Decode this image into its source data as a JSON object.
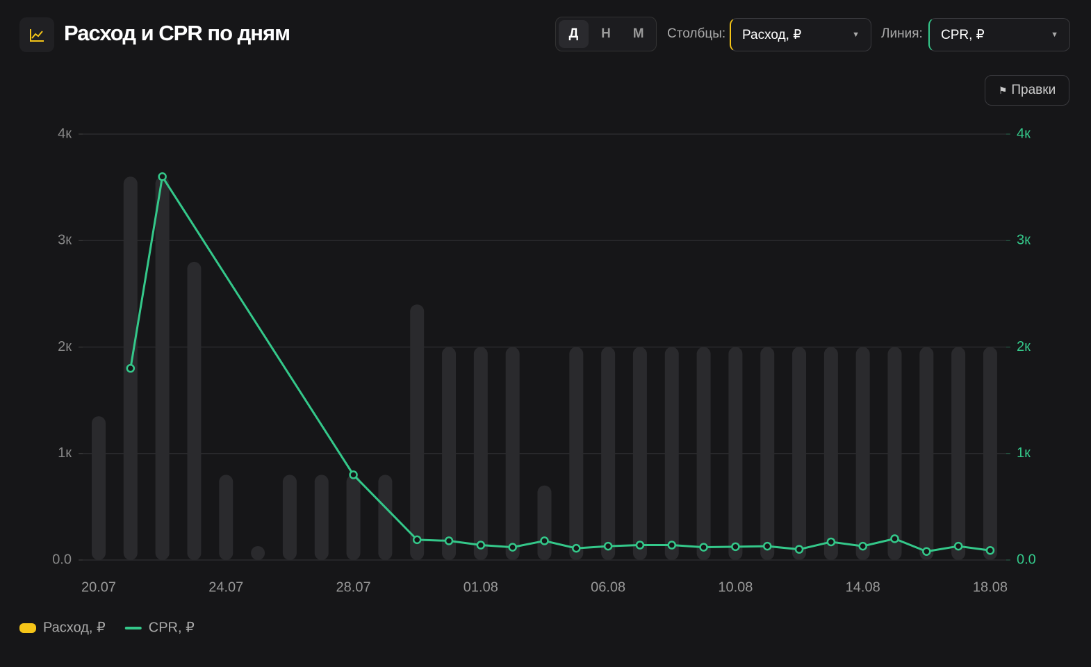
{
  "header": {
    "title": "Расход и CPR по дням",
    "periods": [
      "Д",
      "Н",
      "М"
    ],
    "bars_label": "Столбцы:",
    "bars_value": "Расход, ₽",
    "line_label": "Линия:",
    "line_value": "CPR, ₽",
    "edits_button": "Правки"
  },
  "chart_data": {
    "type": "bar_line",
    "categories": [
      "20.07",
      null,
      null,
      null,
      "24.07",
      null,
      null,
      null,
      "28.07",
      null,
      null,
      null,
      "01.08",
      null,
      null,
      null,
      "06.08",
      null,
      null,
      null,
      "10.08",
      null,
      null,
      null,
      "14.08",
      null,
      null,
      null,
      "18.08"
    ],
    "series": [
      {
        "name": "Расход, ₽",
        "color": "#f5c518",
        "bar_color": "#2a2a2d",
        "values": [
          1350,
          3600,
          3600,
          2800,
          800,
          100,
          800,
          800,
          800,
          800,
          2400,
          2000,
          2000,
          2000,
          700,
          2000,
          2000,
          2000,
          2000,
          2000,
          2000,
          2000,
          2000,
          2000,
          2000,
          2000,
          2000,
          2000,
          2000
        ]
      },
      {
        "name": "CPR, ₽",
        "color": "#34c88a",
        "axis": "y2",
        "span_gaps": true,
        "values": [
          null,
          1800,
          3600,
          null,
          null,
          null,
          null,
          null,
          800,
          null,
          190,
          180,
          140,
          120,
          180,
          110,
          130,
          140,
          140,
          120,
          125,
          130,
          100,
          170,
          130,
          200,
          80,
          130,
          90
        ]
      }
    ],
    "ylim": [
      0,
      4000
    ],
    "yticks": [
      {
        "value": 0,
        "label": "0.0"
      },
      {
        "value": 1000,
        "label": "1к"
      },
      {
        "value": 2000,
        "label": "2к"
      },
      {
        "value": 3000,
        "label": "3к"
      },
      {
        "value": 4000,
        "label": "4к"
      }
    ],
    "y2lim": [
      0,
      4000
    ],
    "y2ticks": [
      {
        "value": 0,
        "label": "0.0"
      },
      {
        "value": 1000,
        "label": "1к"
      },
      {
        "value": 2000,
        "label": "2к"
      },
      {
        "value": 3000,
        "label": "3к"
      },
      {
        "value": 4000,
        "label": "4к"
      }
    ],
    "grid": true
  }
}
